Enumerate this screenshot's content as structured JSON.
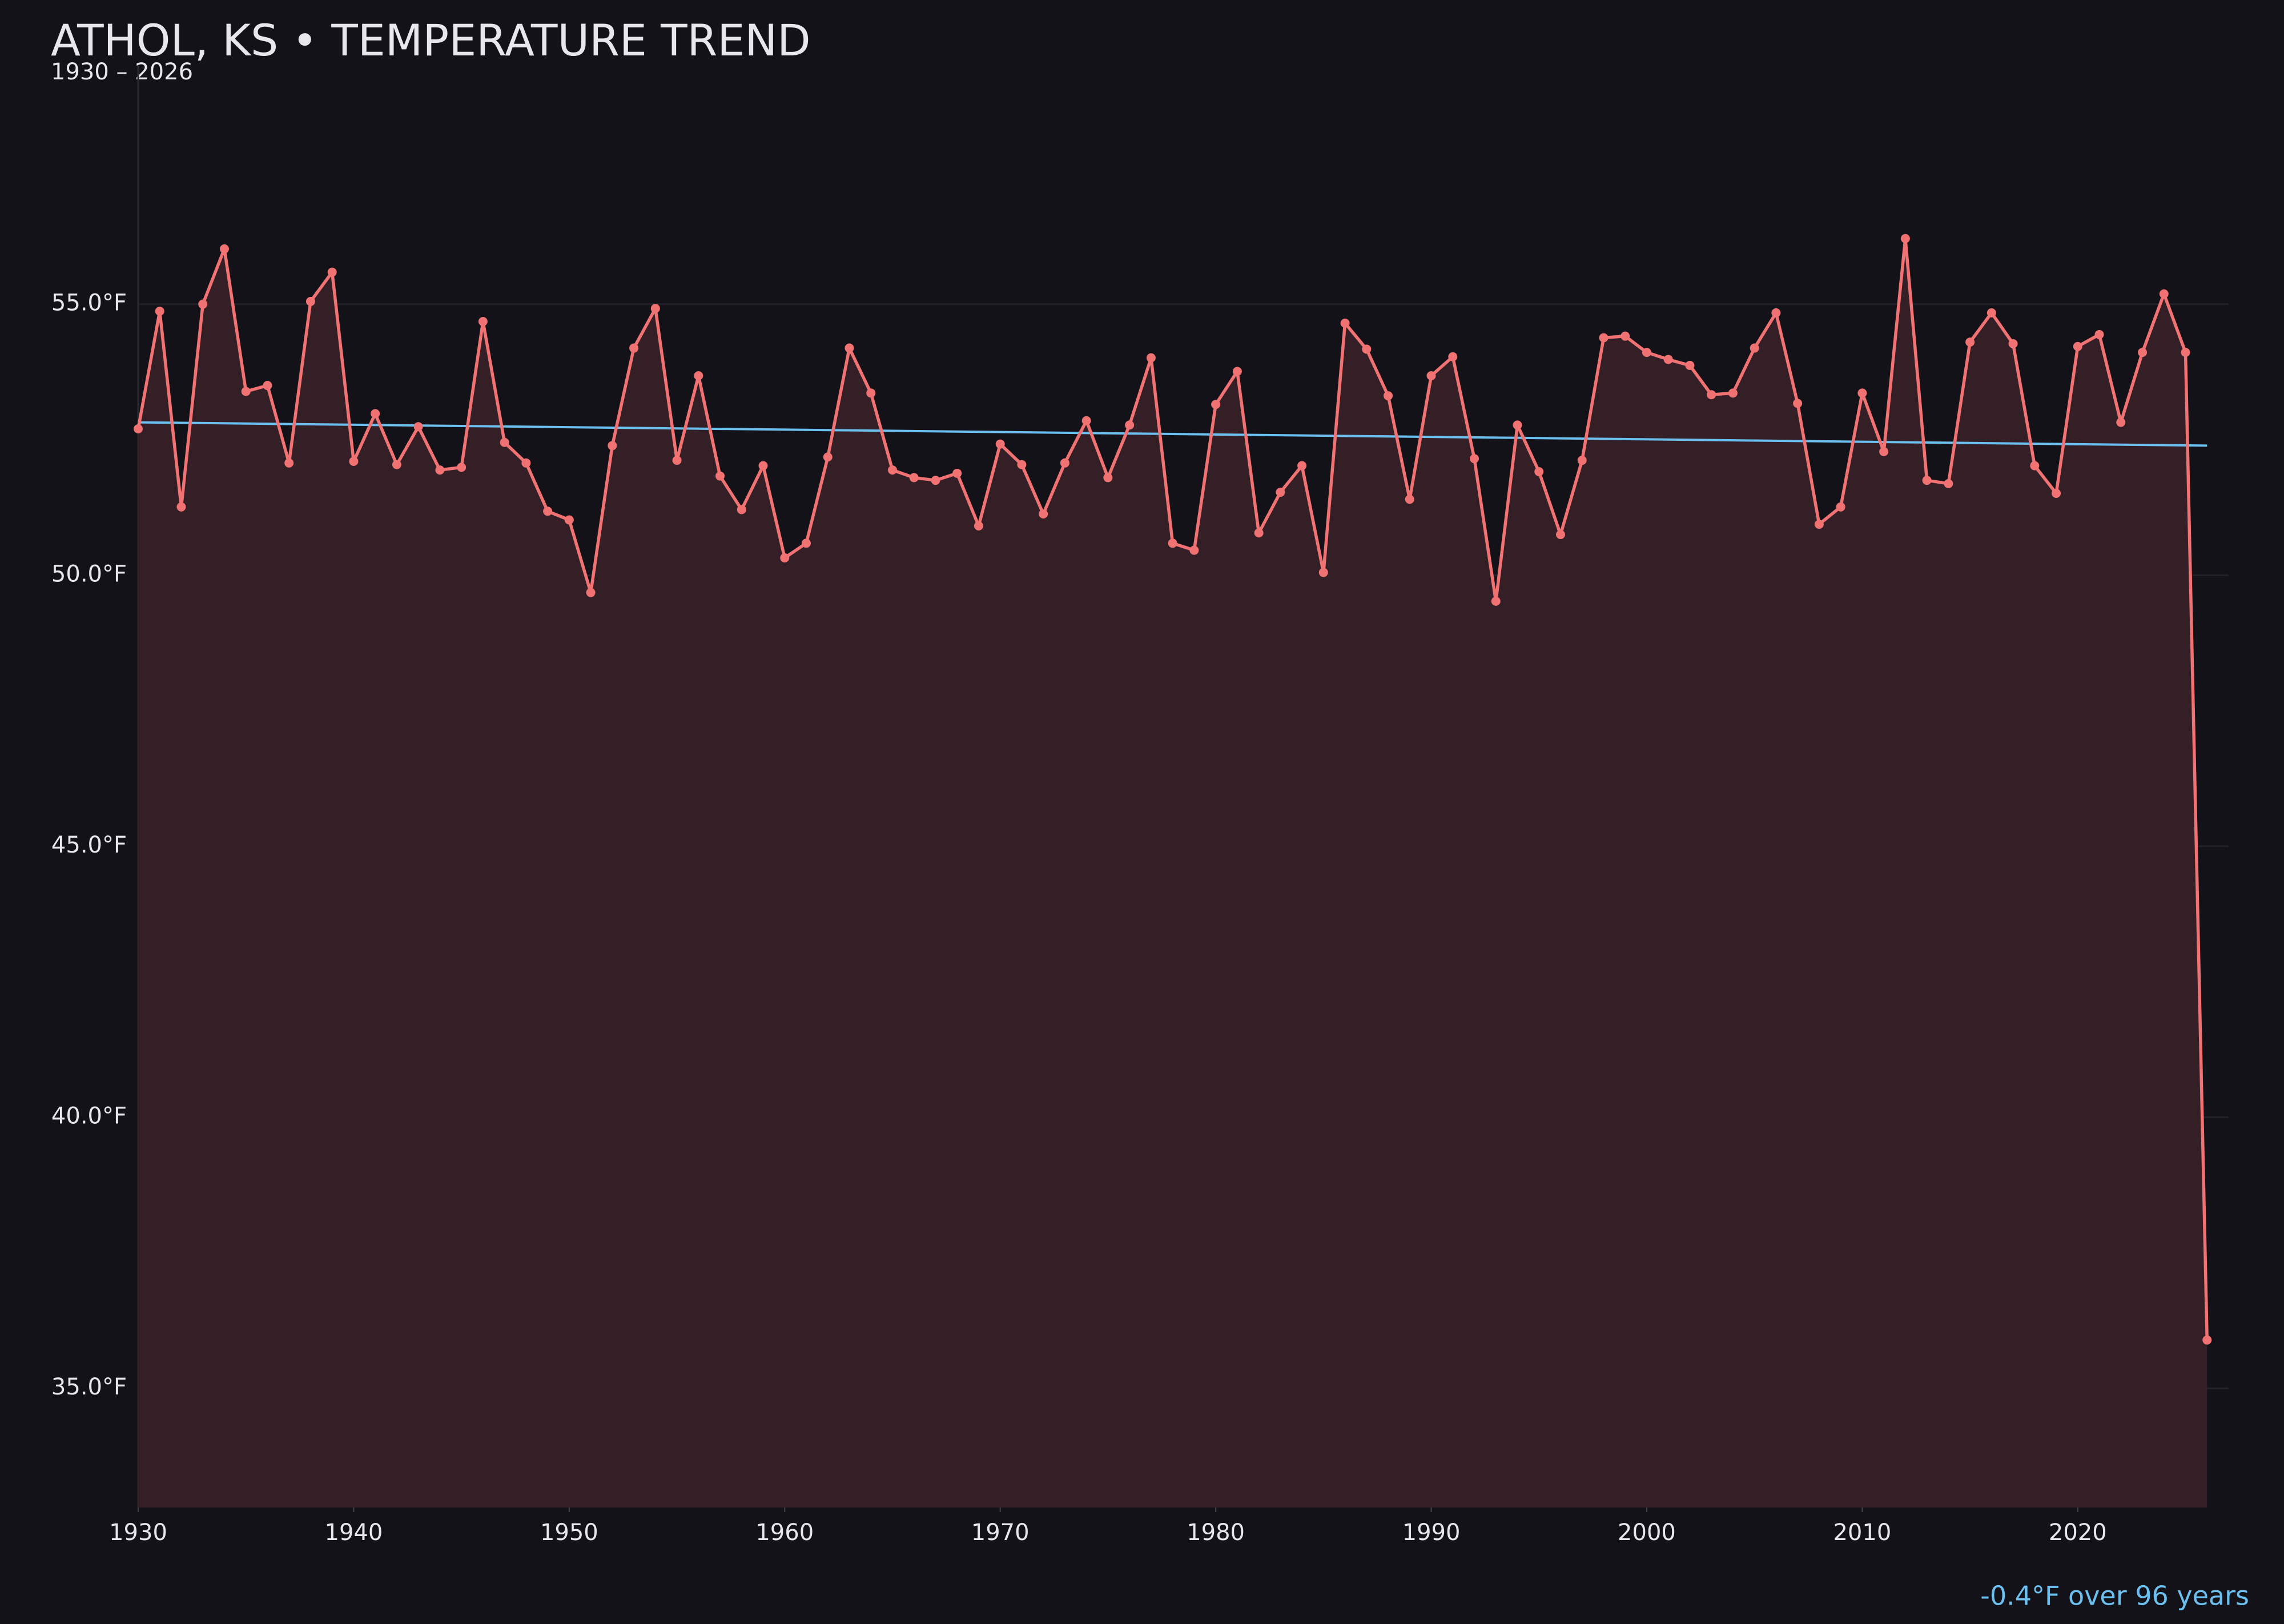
{
  "chart_data": {
    "type": "line",
    "title": "ATHOL, KS • TEMPERATURE TREND",
    "subtitle": "1930 – 2026",
    "annotation": "-0.4°F over 96 years",
    "x": [
      1930,
      1931,
      1932,
      1933,
      1934,
      1935,
      1936,
      1937,
      1938,
      1939,
      1940,
      1941,
      1942,
      1943,
      1944,
      1945,
      1946,
      1947,
      1948,
      1949,
      1950,
      1951,
      1952,
      1953,
      1954,
      1955,
      1956,
      1957,
      1958,
      1959,
      1960,
      1961,
      1962,
      1963,
      1964,
      1965,
      1966,
      1967,
      1968,
      1969,
      1970,
      1971,
      1972,
      1973,
      1974,
      1975,
      1976,
      1977,
      1978,
      1979,
      1980,
      1981,
      1982,
      1983,
      1984,
      1985,
      1986,
      1987,
      1988,
      1989,
      1990,
      1991,
      1992,
      1993,
      1994,
      1995,
      1996,
      1997,
      1998,
      1999,
      2000,
      2001,
      2002,
      2003,
      2004,
      2005,
      2006,
      2007,
      2008,
      2009,
      2010,
      2011,
      2012,
      2013,
      2014,
      2015,
      2016,
      2017,
      2018,
      2019,
      2020,
      2021,
      2022,
      2023,
      2024,
      2025,
      2026
    ],
    "values": [
      52.7,
      54.87,
      51.26,
      55.0,
      56.02,
      53.39,
      53.5,
      52.07,
      55.05,
      55.59,
      52.1,
      52.98,
      52.04,
      52.74,
      51.94,
      51.99,
      54.68,
      52.45,
      52.07,
      51.18,
      51.02,
      49.68,
      52.39,
      54.19,
      54.92,
      52.12,
      53.68,
      51.83,
      51.21,
      52.02,
      50.32,
      50.59,
      52.18,
      54.19,
      53.36,
      51.94,
      51.8,
      51.75,
      51.88,
      50.91,
      52.42,
      52.04,
      51.13,
      52.07,
      52.85,
      51.8,
      52.77,
      54.01,
      50.59,
      50.46,
      53.15,
      53.76,
      50.78,
      51.53,
      52.02,
      50.05,
      54.65,
      54.17,
      53.31,
      51.4,
      53.68,
      54.03,
      52.15,
      49.52,
      52.77,
      51.91,
      50.75,
      52.12,
      54.38,
      54.41,
      54.11,
      53.98,
      53.87,
      53.33,
      53.36,
      54.19,
      54.84,
      53.17,
      50.94,
      51.26,
      53.36,
      52.28,
      56.21,
      51.75,
      51.69,
      54.3,
      54.84,
      54.27,
      52.02,
      51.51,
      54.22,
      54.44,
      52.82,
      54.11,
      55.19,
      54.11,
      35.89
    ],
    "color": "#f07272",
    "fill_color": "#351f27",
    "trend": {
      "x": [
        1930,
        2026
      ],
      "values": [
        52.82,
        52.39
      ],
      "color": "#6cc0f0"
    },
    "xlim": [
      1930,
      2027
    ],
    "ylim": [
      32.8,
      59.4
    ],
    "xticks": [
      1930,
      1940,
      1950,
      1960,
      1970,
      1980,
      1990,
      2000,
      2010,
      2020
    ],
    "yticks": [
      {
        "value": 35,
        "label": "35.0°F"
      },
      {
        "value": 40,
        "label": "40.0°F"
      },
      {
        "value": 45,
        "label": "45.0°F"
      },
      {
        "value": 50,
        "label": "50.0°F"
      },
      {
        "value": 55,
        "label": "55.0°F"
      }
    ],
    "grid": true
  }
}
